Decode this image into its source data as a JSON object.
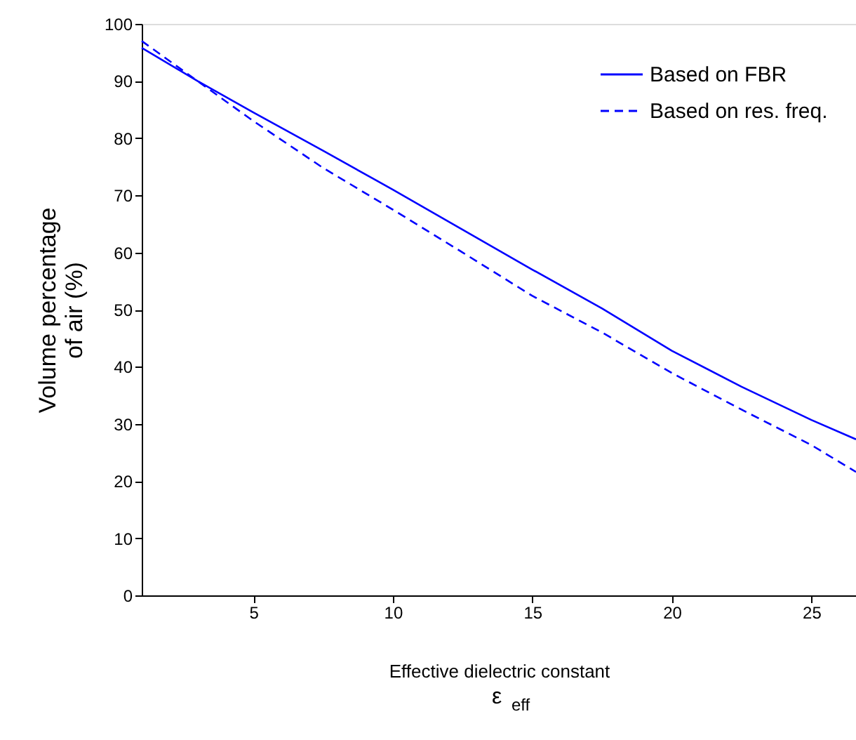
{
  "chart_data": {
    "type": "line",
    "xlabel": "Effective dielectric constant",
    "ylabel": "Volume percentage\nof air (%)",
    "annotations": [
      "ε$_{eff}$"
    ],
    "xlim": [
      1,
      26.6
    ],
    "ylim": [
      0,
      100
    ],
    "xticks": [
      5,
      10,
      15,
      20,
      25
    ],
    "yticks": [
      0,
      10,
      20,
      30,
      40,
      50,
      60,
      70,
      80,
      90,
      100
    ],
    "grid": false,
    "legend": "top right",
    "marker": "none",
    "series": [
      {
        "name": "Based on FBR",
        "color": "#0000ff",
        "line_style": "solid",
        "x": [
          1,
          3,
          5,
          7.5,
          10,
          12.5,
          15,
          17.5,
          20,
          22.5,
          25,
          26.6
        ],
        "values": [
          95.8,
          90,
          84.5,
          77.8,
          71,
          64,
          57,
          50.2,
          42.8,
          36.5,
          30.7,
          27.3
        ]
      },
      {
        "name": "Based on res. freq.",
        "color": "#0000ff",
        "line_style": "dashed",
        "x": [
          1,
          3,
          5,
          7.5,
          10,
          12.5,
          15,
          17.5,
          20,
          22.5,
          25,
          26.6
        ],
        "values": [
          97,
          90,
          83,
          74.8,
          67.5,
          60,
          52.4,
          46,
          38.9,
          32.5,
          26.3,
          21.6
        ]
      }
    ]
  }
}
